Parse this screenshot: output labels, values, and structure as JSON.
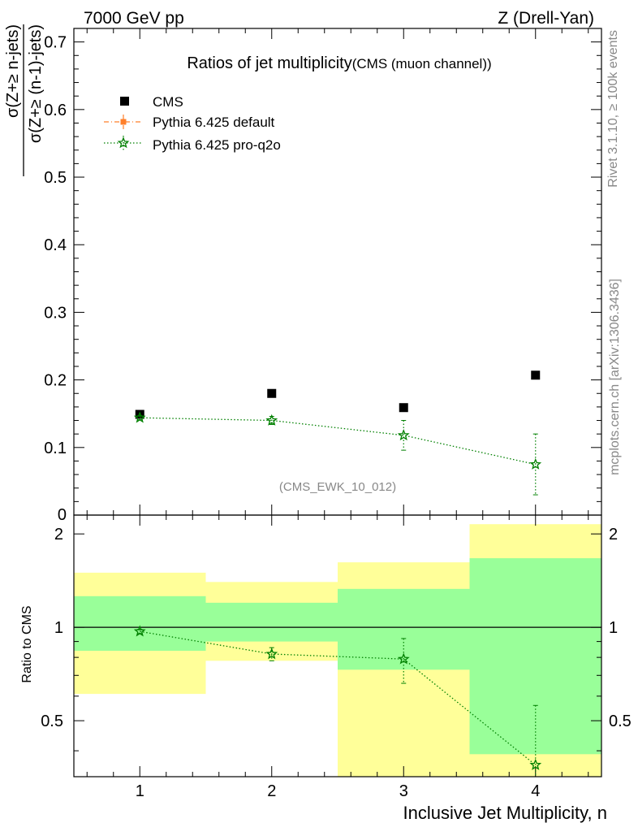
{
  "header": {
    "left": "7000 GeV pp",
    "right": "Z (Drell-Yan)"
  },
  "side_text": {
    "rivet": "Rivet 3.1.10, ≥ 100k events",
    "mcplots": "mcplots.cern.ch [arXiv:1306.3436]"
  },
  "chart_data": [
    {
      "type": "scatter",
      "title": "Ratios of jet multiplicity",
      "subtitle": "(CMS (muon channel))",
      "analysis_tag": "(CMS_EWK_10_012)",
      "ylabel_numerator": "σ(Z+≥ n-jets)",
      "ylabel_denominator": "σ(Z+≥ (n-1)-jets)",
      "xlim": [
        0.5,
        4.5
      ],
      "ylim": [
        0,
        0.72
      ],
      "yticks": [
        0.1,
        0.2,
        0.3,
        0.4,
        0.5,
        0.6,
        0.7
      ],
      "ytick_labels": [
        "0.1",
        "0.2",
        "0.3",
        "0.4",
        "0.5",
        "0.6",
        "0.7"
      ],
      "ytick_bottom_label": "0",
      "legend_position": "top-left",
      "series": [
        {
          "name": "CMS",
          "color": "#000000",
          "marker": "square",
          "x": [
            1,
            2,
            3,
            4
          ],
          "y": [
            0.149,
            0.18,
            0.159,
            0.207
          ]
        },
        {
          "name": "Pythia 6.425 default",
          "color": "#ff7f2a",
          "marker": "square",
          "line": "dash-dot",
          "x": [],
          "y": []
        },
        {
          "name": "Pythia 6.425 pro-q2o",
          "color": "#008000",
          "marker": "star",
          "line": "dotted",
          "x": [
            1,
            2,
            3,
            4
          ],
          "y": [
            0.144,
            0.14,
            0.118,
            0.075
          ],
          "y_err_low": [
            0.003,
            0.006,
            0.022,
            0.045
          ],
          "y_err_high": [
            0.003,
            0.006,
            0.022,
            0.045
          ]
        }
      ]
    },
    {
      "type": "scatter",
      "ylabel": "Ratio to CMS",
      "xlabel": "Inclusive Jet Multiplicity, n",
      "xlim": [
        0.5,
        4.5
      ],
      "ylim": [
        0.33,
        2.3
      ],
      "scale": "log",
      "xticks": [
        1,
        2,
        3,
        4
      ],
      "xtick_labels": [
        "1",
        "2",
        "3",
        "4"
      ],
      "yticks": [
        0.5,
        1,
        2
      ],
      "ytick_labels": [
        "0.5",
        "1",
        "2"
      ],
      "reference_line": 1,
      "bands": [
        {
          "x_range": [
            0.5,
            1.5
          ],
          "inner": [
            0.84,
            1.26
          ],
          "outer": [
            0.61,
            1.5
          ]
        },
        {
          "x_range": [
            1.5,
            2.5
          ],
          "inner": [
            0.9,
            1.2
          ],
          "outer": [
            0.78,
            1.4
          ]
        },
        {
          "x_range": [
            2.5,
            3.5
          ],
          "inner": [
            0.73,
            1.33
          ],
          "outer": [
            0.33,
            1.62
          ]
        },
        {
          "x_range": [
            3.5,
            4.5
          ],
          "inner": [
            0.39,
            1.67
          ],
          "outer": [
            0.33,
            2.15
          ]
        }
      ],
      "band_colors": {
        "inner": "#99ff99",
        "outer": "#ffff99"
      },
      "series": [
        {
          "name": "Pythia 6.425 pro-q2o",
          "color": "#008000",
          "marker": "star",
          "line": "dotted",
          "x": [
            1,
            2,
            3,
            4
          ],
          "y": [
            0.97,
            0.82,
            0.79,
            0.36
          ],
          "y_err_low": [
            0.015,
            0.04,
            0.13,
            0.2
          ],
          "y_err_high": [
            0.015,
            0.04,
            0.13,
            0.2
          ]
        }
      ]
    }
  ]
}
